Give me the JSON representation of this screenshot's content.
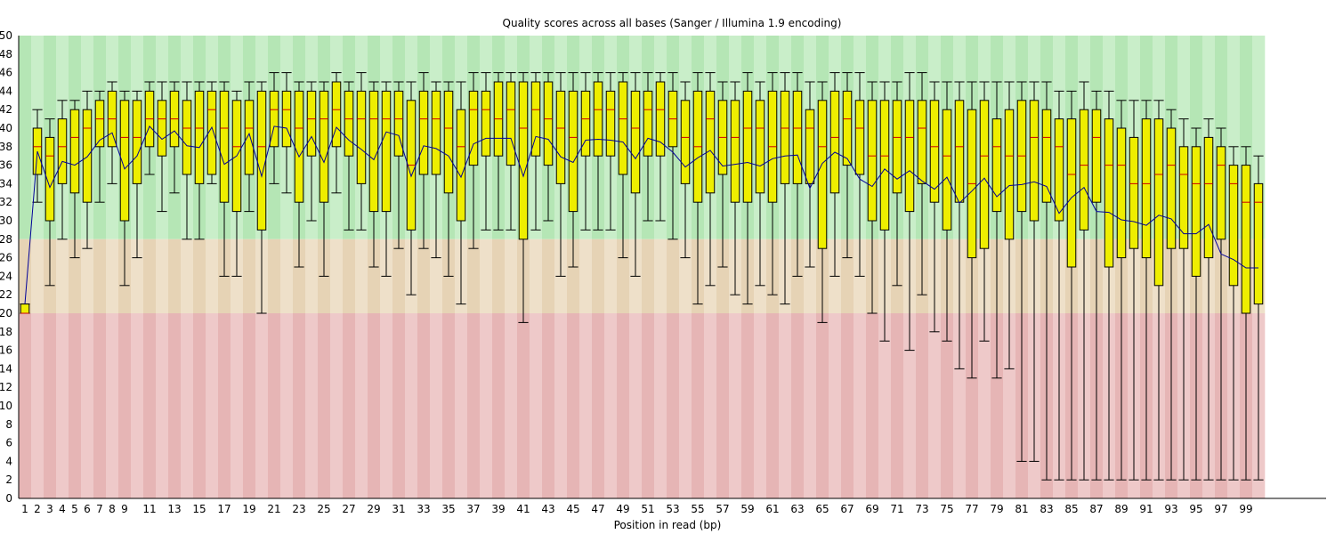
{
  "chart_data": {
    "type": "boxplot",
    "title": "Quality scores across all bases (Sanger / Illumina 1.9 encoding)",
    "xlabel": "Position in read (bp)",
    "ylabel": "",
    "ylim": [
      0,
      50
    ],
    "y_ticks": [
      0,
      2,
      4,
      6,
      8,
      10,
      12,
      14,
      16,
      18,
      20,
      22,
      24,
      26,
      28,
      30,
      32,
      34,
      36,
      38,
      40,
      42,
      44,
      46,
      48,
      50
    ],
    "x_tick_labels": [
      "1",
      "2",
      "3",
      "4",
      "5",
      "6",
      "7",
      "8",
      "9",
      "11",
      "13",
      "15",
      "17",
      "19",
      "21",
      "23",
      "25",
      "27",
      "29",
      "31",
      "33",
      "35",
      "37",
      "39",
      "41",
      "43",
      "45",
      "47",
      "49",
      "51",
      "53",
      "55",
      "57",
      "59",
      "61",
      "63",
      "65",
      "67",
      "69",
      "71",
      "73",
      "75",
      "77",
      "79",
      "81",
      "83",
      "85",
      "87",
      "89",
      "91",
      "93",
      "95",
      "97",
      "99"
    ],
    "positions": [
      1,
      2,
      3,
      4,
      5,
      6,
      7,
      8,
      9,
      10,
      11,
      12,
      13,
      14,
      15,
      16,
      17,
      18,
      19,
      20,
      21,
      22,
      23,
      24,
      25,
      26,
      27,
      28,
      29,
      30,
      31,
      32,
      33,
      34,
      35,
      36,
      37,
      38,
      39,
      40,
      41,
      42,
      43,
      44,
      45,
      46,
      47,
      48,
      49,
      50,
      51,
      52,
      53,
      54,
      55,
      56,
      57,
      58,
      59,
      60,
      61,
      62,
      63,
      64,
      65,
      66,
      67,
      68,
      69,
      70,
      71,
      72,
      73,
      74,
      75,
      76,
      77,
      78,
      79,
      80,
      81,
      82,
      83,
      84,
      85,
      86,
      87,
      88,
      89,
      90,
      91,
      92,
      93,
      94,
      95,
      96,
      97,
      98,
      99,
      100
    ],
    "quality_bands": [
      {
        "range": [
          28,
          50
        ],
        "color_a": "#b5e6b5",
        "color_b": "#c9eec9"
      },
      {
        "range": [
          20,
          28
        ],
        "color_a": "#e6d3b5",
        "color_b": "#eee0c9"
      },
      {
        "range": [
          0,
          20
        ],
        "color_a": "#e6b5b5",
        "color_b": "#eec9c9"
      }
    ],
    "box_color": "#eeee00",
    "median_color": "#cc0000",
    "mean_color": "#000099",
    "series": {
      "whisker_low": [
        20,
        32,
        23,
        28,
        26,
        27,
        32,
        34,
        23,
        26,
        35,
        31,
        33,
        28,
        28,
        34,
        24,
        24,
        31,
        20,
        34,
        33,
        25,
        30,
        24,
        33,
        29,
        29,
        25,
        24,
        27,
        22,
        27,
        26,
        24,
        21,
        27,
        29,
        29,
        29,
        19,
        29,
        30,
        24,
        25,
        29,
        29,
        29,
        26,
        24,
        30,
        30,
        28,
        26,
        21,
        23,
        25,
        22,
        21,
        23,
        22,
        21,
        24,
        25,
        19,
        24,
        26,
        24,
        20,
        17,
        23,
        16,
        22,
        18,
        17,
        14,
        13,
        17,
        13,
        14,
        4,
        4,
        2,
        2,
        2,
        2,
        2,
        2,
        2,
        2,
        2,
        2,
        2,
        2,
        2,
        2,
        2,
        2,
        2,
        2
      ],
      "q1": [
        20,
        35,
        30,
        34,
        33,
        32,
        38,
        38,
        30,
        34,
        38,
        37,
        38,
        35,
        34,
        35,
        32,
        31,
        35,
        29,
        38,
        38,
        32,
        37,
        32,
        38,
        37,
        34,
        31,
        31,
        37,
        29,
        35,
        35,
        33,
        30,
        36,
        37,
        37,
        36,
        28,
        37,
        36,
        34,
        31,
        37,
        37,
        37,
        35,
        33,
        37,
        37,
        38,
        34,
        32,
        33,
        35,
        32,
        32,
        33,
        32,
        34,
        34,
        34,
        27,
        33,
        36,
        35,
        30,
        29,
        33,
        31,
        34,
        32,
        29,
        32,
        26,
        27,
        31,
        28,
        31,
        30,
        32,
        30,
        25,
        29,
        32,
        25,
        26,
        27,
        26,
        23,
        27,
        27,
        24,
        26,
        28,
        23,
        20,
        21
      ],
      "median": [
        20,
        38,
        37,
        38,
        39,
        40,
        41,
        41,
        39,
        39,
        41,
        41,
        41,
        40,
        40,
        42,
        40,
        38,
        40,
        38,
        42,
        42,
        40,
        41,
        41,
        42,
        41,
        41,
        41,
        41,
        41,
        36,
        41,
        41,
        40,
        38,
        42,
        42,
        41,
        42,
        40,
        42,
        41,
        40,
        39,
        41,
        42,
        42,
        41,
        40,
        42,
        42,
        41,
        39,
        38,
        41,
        39,
        39,
        40,
        40,
        38,
        40,
        40,
        40,
        38,
        39,
        41,
        40,
        37,
        37,
        39,
        39,
        40,
        38,
        37,
        38,
        34,
        37,
        38,
        37,
        37,
        39,
        39,
        38,
        35,
        36,
        39,
        36,
        36,
        34,
        34,
        35,
        36,
        35,
        34,
        34,
        36,
        34,
        32,
        32
      ],
      "q3": [
        21,
        40,
        39,
        41,
        42,
        42,
        43,
        44,
        43,
        43,
        44,
        43,
        44,
        43,
        44,
        44,
        44,
        43,
        43,
        44,
        44,
        44,
        44,
        44,
        44,
        45,
        44,
        44,
        44,
        44,
        44,
        43,
        44,
        44,
        44,
        42,
        44,
        44,
        45,
        45,
        45,
        45,
        45,
        44,
        44,
        44,
        45,
        44,
        45,
        44,
        44,
        45,
        44,
        43,
        44,
        44,
        43,
        43,
        44,
        43,
        44,
        44,
        44,
        42,
        43,
        44,
        44,
        43,
        43,
        43,
        43,
        43,
        43,
        43,
        42,
        43,
        42,
        43,
        41,
        42,
        43,
        43,
        42,
        41,
        41,
        42,
        42,
        41,
        40,
        39,
        41,
        41,
        40,
        38,
        38,
        39,
        38,
        36,
        36,
        34
      ],
      "whisker_high": [
        21,
        42,
        41,
        43,
        43,
        44,
        44,
        45,
        44,
        44,
        45,
        45,
        45,
        45,
        45,
        45,
        45,
        44,
        45,
        45,
        46,
        46,
        45,
        45,
        45,
        46,
        45,
        46,
        45,
        45,
        45,
        45,
        46,
        45,
        45,
        45,
        46,
        46,
        46,
        46,
        46,
        46,
        46,
        46,
        46,
        46,
        46,
        46,
        46,
        46,
        46,
        46,
        46,
        45,
        46,
        46,
        45,
        45,
        46,
        45,
        46,
        46,
        46,
        45,
        45,
        46,
        46,
        46,
        45,
        45,
        45,
        46,
        46,
        45,
        45,
        45,
        45,
        45,
        45,
        45,
        45,
        45,
        45,
        44,
        44,
        45,
        44,
        44,
        43,
        43,
        43,
        43,
        42,
        41,
        40,
        41,
        40,
        38,
        38,
        37
      ],
      "mean": [
        21,
        37.5,
        33.6,
        36.4,
        36,
        36.9,
        38.7,
        39.5,
        35.6,
        37,
        40.2,
        38.8,
        39.7,
        38.1,
        37.9,
        40.1,
        36.1,
        37,
        39.4,
        34.8,
        40.2,
        40,
        36.9,
        39.1,
        36.3,
        40.1,
        38.7,
        37.7,
        36.6,
        39.6,
        39.2,
        34.8,
        38.1,
        37.8,
        37,
        34.7,
        38.3,
        38.9,
        38.9,
        38.9,
        34.8,
        39.1,
        38.8,
        36.9,
        36.3,
        38.7,
        38.8,
        38.7,
        38.5,
        36.7,
        38.9,
        38.5,
        37.4,
        35.8,
        36.8,
        37.6,
        35.9,
        36.1,
        36.3,
        35.9,
        36.7,
        37,
        37.1,
        33.5,
        36.2,
        37.4,
        36.7,
        34.5,
        33.7,
        35.6,
        34.5,
        35.4,
        34.3,
        33.4,
        34.7,
        31.9,
        33.2,
        34.6,
        32.6,
        33.8,
        33.9,
        34.2,
        33.7,
        30.8,
        32.5,
        33.6,
        31,
        30.9,
        30.1,
        29.9,
        29.5,
        30.6,
        30.2,
        28.6,
        28.6,
        29.6,
        26.4,
        25.8,
        24.9,
        24.9
      ]
    }
  }
}
